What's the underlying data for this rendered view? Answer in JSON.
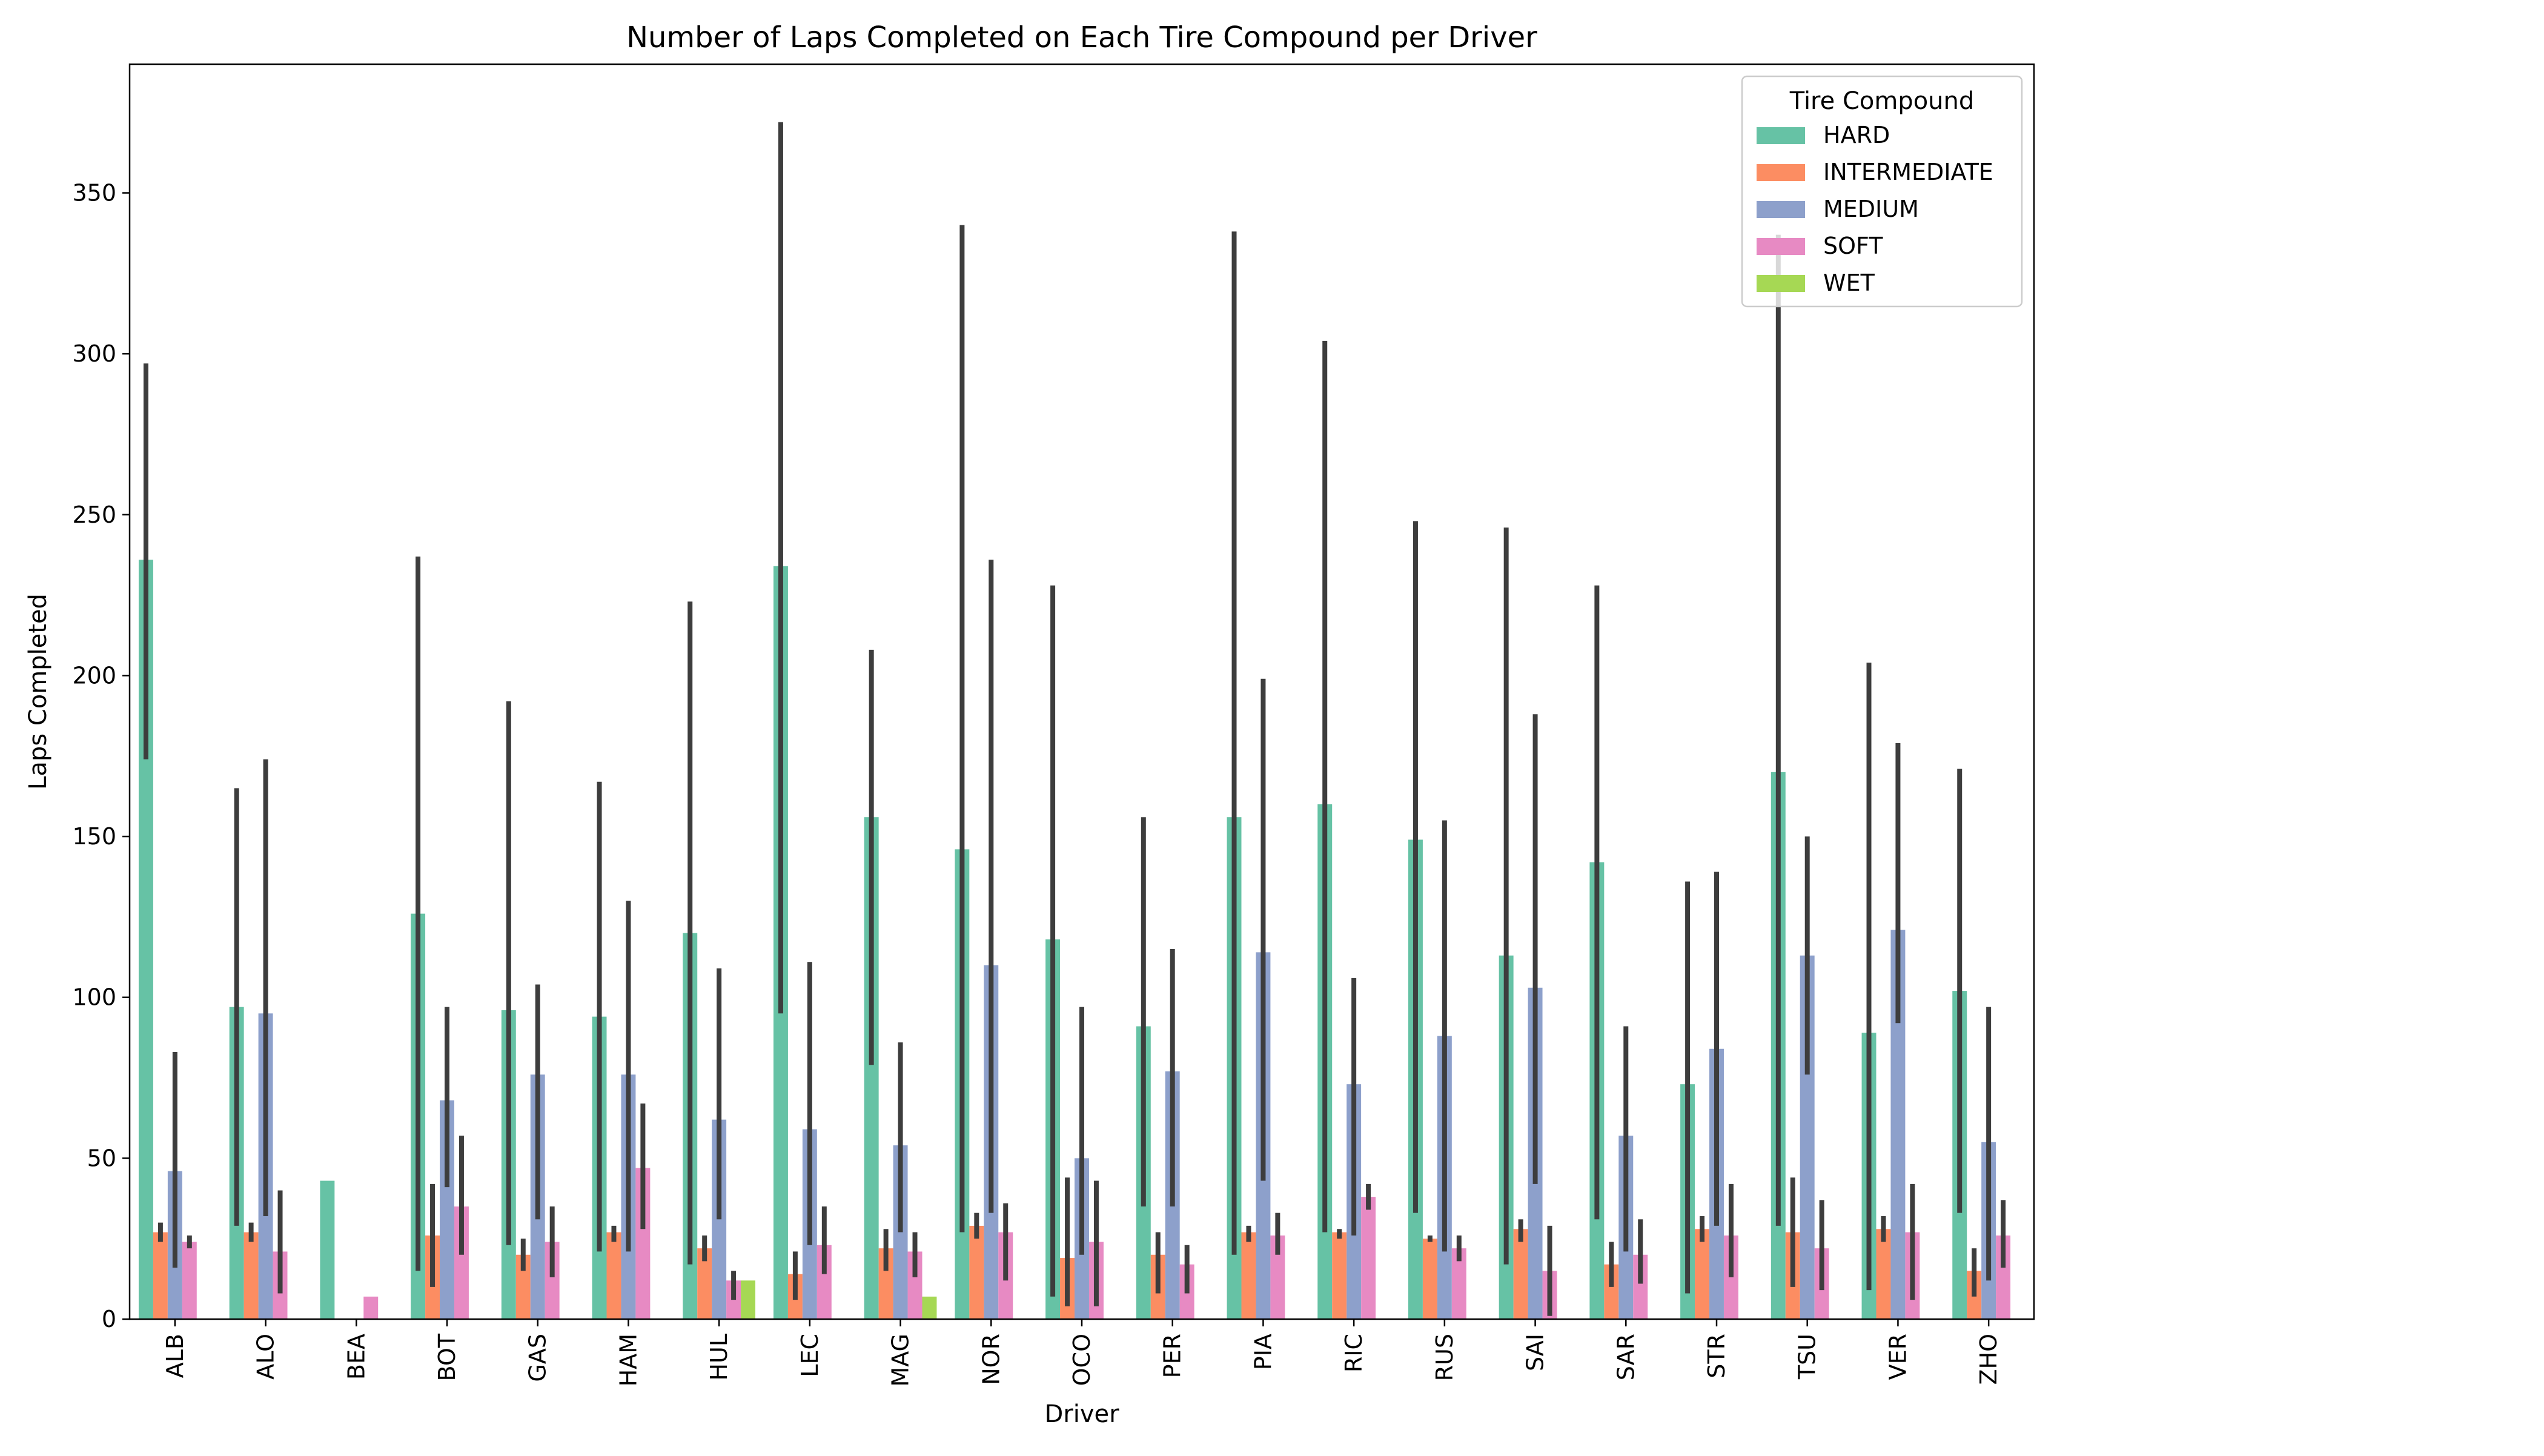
{
  "chart_data": {
    "type": "bar",
    "title": "Number of Laps Completed on Each Tire Compound per Driver",
    "xlabel": "Driver",
    "ylabel": "Laps Completed",
    "ylim": [
      0,
      390
    ],
    "yticks": [
      0,
      50,
      100,
      150,
      200,
      250,
      300,
      350
    ],
    "grid": false,
    "error_bars": true,
    "legend": {
      "title": "Tire Compound",
      "placement": "top-right"
    },
    "categories": [
      "ALB",
      "ALO",
      "BEA",
      "BOT",
      "GAS",
      "HAM",
      "HUL",
      "LEC",
      "MAG",
      "NOR",
      "OCO",
      "PER",
      "PIA",
      "RIC",
      "RUS",
      "SAI",
      "SAR",
      "STR",
      "TSU",
      "VER",
      "ZHO"
    ],
    "series": [
      {
        "name": "HARD",
        "color": "#66c2a5",
        "values": [
          236,
          97,
          43,
          126,
          96,
          94,
          120,
          234,
          156,
          146,
          118,
          91,
          156,
          160,
          149,
          113,
          142,
          73,
          170,
          89,
          102
        ],
        "err_low": [
          174,
          29,
          null,
          15,
          23,
          21,
          17,
          95,
          79,
          27,
          7,
          35,
          20,
          27,
          33,
          17,
          31,
          8,
          29,
          9,
          33
        ],
        "err_high": [
          297,
          165,
          null,
          237,
          192,
          167,
          223,
          372,
          208,
          340,
          228,
          156,
          338,
          304,
          248,
          246,
          228,
          136,
          337,
          204,
          171
        ]
      },
      {
        "name": "INTERMEDIATE",
        "color": "#fc8d62",
        "values": [
          27,
          27,
          null,
          26,
          20,
          27,
          22,
          14,
          22,
          29,
          19,
          20,
          27,
          27,
          25,
          28,
          17,
          28,
          27,
          28,
          15
        ],
        "err_low": [
          24,
          24,
          null,
          10,
          15,
          24,
          18,
          6,
          15,
          25,
          4,
          8,
          24,
          25,
          24,
          24,
          10,
          24,
          10,
          24,
          7
        ],
        "err_high": [
          30,
          30,
          null,
          42,
          25,
          29,
          26,
          21,
          28,
          33,
          44,
          27,
          29,
          28,
          26,
          31,
          24,
          32,
          44,
          32,
          22
        ]
      },
      {
        "name": "MEDIUM",
        "color": "#8da0cb",
        "values": [
          46,
          95,
          null,
          68,
          76,
          76,
          62,
          59,
          54,
          110,
          50,
          77,
          114,
          73,
          88,
          103,
          57,
          84,
          113,
          121,
          55
        ],
        "err_low": [
          16,
          32,
          null,
          41,
          31,
          21,
          31,
          23,
          27,
          33,
          20,
          35,
          43,
          26,
          21,
          42,
          21,
          29,
          76,
          92,
          12
        ],
        "err_high": [
          83,
          174,
          null,
          97,
          104,
          130,
          109,
          111,
          86,
          236,
          97,
          115,
          199,
          106,
          155,
          188,
          91,
          139,
          150,
          179,
          97
        ]
      },
      {
        "name": "SOFT",
        "color": "#e78ac3",
        "values": [
          24,
          21,
          7,
          35,
          24,
          47,
          12,
          23,
          21,
          27,
          24,
          17,
          26,
          38,
          22,
          15,
          20,
          26,
          22,
          27,
          26
        ],
        "err_low": [
          22,
          8,
          null,
          20,
          13,
          28,
          6,
          14,
          13,
          12,
          4,
          8,
          20,
          34,
          18,
          1,
          11,
          13,
          9,
          6,
          16
        ],
        "err_high": [
          26,
          40,
          null,
          57,
          35,
          67,
          15,
          35,
          27,
          36,
          43,
          23,
          33,
          42,
          26,
          29,
          31,
          42,
          37,
          42,
          37
        ]
      },
      {
        "name": "WET",
        "color": "#a6d854",
        "values": [
          null,
          null,
          null,
          null,
          null,
          null,
          12,
          null,
          7,
          null,
          null,
          null,
          null,
          null,
          null,
          null,
          null,
          null,
          null,
          null,
          null
        ],
        "err_low": [
          null,
          null,
          null,
          null,
          null,
          null,
          null,
          null,
          null,
          null,
          null,
          null,
          null,
          null,
          null,
          null,
          null,
          null,
          null,
          null,
          null
        ],
        "err_high": [
          null,
          null,
          null,
          null,
          null,
          null,
          null,
          null,
          null,
          null,
          null,
          null,
          null,
          null,
          null,
          null,
          null,
          null,
          null,
          null,
          null
        ]
      }
    ]
  }
}
